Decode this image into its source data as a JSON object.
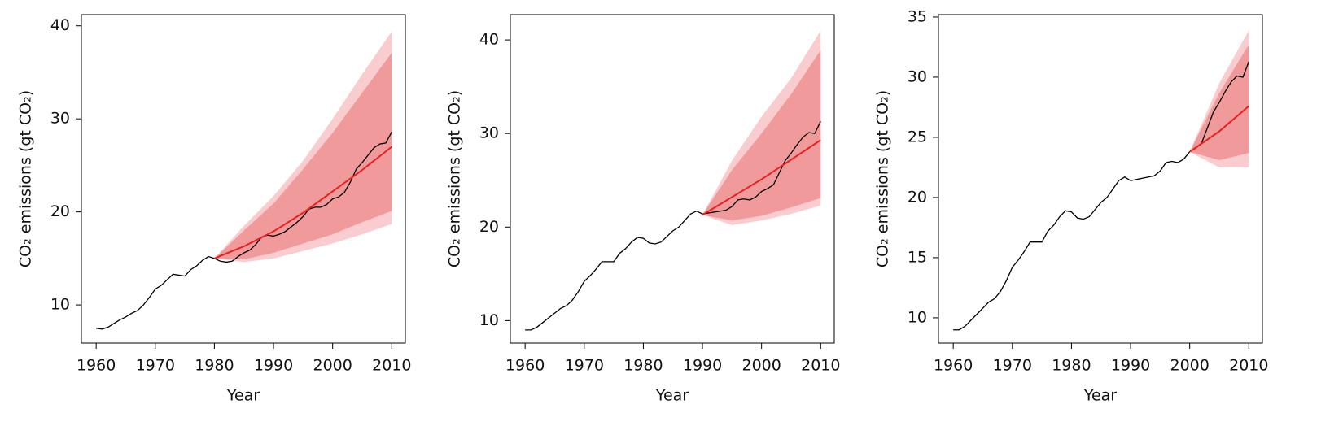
{
  "chart_data": [
    {
      "type": "line",
      "xlabel": "Year",
      "ylabel": "CO₂ emissions (gt CO₂)",
      "xlim": [
        1957.5,
        2012.3
      ],
      "ylim": [
        5.9,
        41.2
      ],
      "xticks": [
        1960,
        1970,
        1980,
        1990,
        2000,
        2010
      ],
      "yticks": [
        10,
        20,
        30,
        40
      ],
      "x": [
        1960,
        1961,
        1962,
        1963,
        1964,
        1965,
        1966,
        1967,
        1968,
        1969,
        1970,
        1971,
        1972,
        1973,
        1974,
        1975,
        1976,
        1977,
        1978,
        1979,
        1980,
        1981,
        1982,
        1983,
        1984,
        1985,
        1986,
        1987,
        1988,
        1989,
        1990,
        1991,
        1992,
        1993,
        1994,
        1995,
        1996,
        1997,
        1998,
        1999,
        2000,
        2001,
        2002,
        2003,
        2004,
        2005,
        2006,
        2007,
        2008,
        2009,
        2010
      ],
      "series": [
        {
          "color": "#000000",
          "values": [
            7.5,
            7.4,
            7.6,
            8.0,
            8.4,
            8.7,
            9.1,
            9.4,
            10.0,
            10.8,
            11.7,
            12.1,
            12.7,
            13.3,
            13.2,
            13.1,
            13.8,
            14.2,
            14.8,
            15.2,
            15.0,
            14.7,
            14.6,
            14.7,
            15.2,
            15.6,
            15.9,
            16.5,
            17.3,
            17.5,
            17.4,
            17.6,
            17.9,
            18.4,
            18.9,
            19.5,
            20.3,
            20.5,
            20.5,
            20.8,
            21.4,
            21.6,
            22.1,
            23.2,
            24.6,
            25.3,
            26.1,
            26.9,
            27.3,
            27.4,
            28.6
          ]
        }
      ],
      "forecast_x": [
        1980,
        1985,
        1990,
        1995,
        2000,
        2005,
        2010
      ],
      "forecast": {
        "color": "#e8211f",
        "values": [
          15.0,
          16.3,
          17.9,
          19.9,
          22.2,
          24.5,
          27.0
        ]
      },
      "bands": [
        {
          "color": "#f9cccf",
          "lower": [
            15.0,
            14.6,
            15.0,
            15.8,
            16.6,
            17.6,
            18.7
          ],
          "upper": [
            15.0,
            18.5,
            21.7,
            25.5,
            30.0,
            34.8,
            39.4
          ]
        },
        {
          "color": "#f19a9b",
          "lower": [
            15.0,
            14.9,
            15.6,
            16.6,
            17.6,
            18.9,
            20.1
          ],
          "upper": [
            15.0,
            18.0,
            20.9,
            24.6,
            28.5,
            32.8,
            37.1
          ]
        }
      ]
    },
    {
      "type": "line",
      "xlabel": "Year",
      "ylabel": "CO₂ emissions (gt CO₂)",
      "xlim": [
        1957.5,
        2012.3
      ],
      "ylim": [
        7.6,
        42.7
      ],
      "xticks": [
        1960,
        1970,
        1980,
        1990,
        2000,
        2010
      ],
      "yticks": [
        10,
        20,
        30,
        40
      ],
      "x": [
        1960,
        1961,
        1962,
        1963,
        1964,
        1965,
        1966,
        1967,
        1968,
        1969,
        1970,
        1971,
        1972,
        1973,
        1974,
        1975,
        1976,
        1977,
        1978,
        1979,
        1980,
        1981,
        1982,
        1983,
        1984,
        1985,
        1986,
        1987,
        1988,
        1989,
        1990,
        1991,
        1992,
        1993,
        1994,
        1995,
        1996,
        1997,
        1998,
        1999,
        2000,
        2001,
        2002,
        2003,
        2004,
        2005,
        2006,
        2007,
        2008,
        2009,
        2010
      ],
      "series": [
        {
          "color": "#000000",
          "values": [
            9.0,
            9.0,
            9.3,
            9.8,
            10.3,
            10.8,
            11.3,
            11.6,
            12.2,
            13.1,
            14.2,
            14.8,
            15.5,
            16.3,
            16.3,
            16.3,
            17.2,
            17.7,
            18.4,
            18.9,
            18.8,
            18.3,
            18.2,
            18.4,
            19.0,
            19.6,
            20.0,
            20.7,
            21.4,
            21.7,
            21.4,
            21.5,
            21.6,
            21.7,
            21.8,
            22.2,
            22.9,
            23.0,
            22.9,
            23.2,
            23.8,
            24.1,
            24.5,
            25.8,
            27.1,
            27.9,
            28.8,
            29.6,
            30.1,
            30.0,
            31.3
          ]
        }
      ],
      "forecast_x": [
        1990,
        1995,
        2000,
        2005,
        2010
      ],
      "forecast": {
        "color": "#e8211f",
        "values": [
          21.3,
          23.2,
          25.1,
          27.2,
          29.3
        ]
      },
      "bands": [
        {
          "color": "#f9cccf",
          "lower": [
            21.3,
            20.2,
            20.7,
            21.4,
            22.3
          ],
          "upper": [
            21.3,
            27.1,
            31.8,
            35.9,
            41.0
          ]
        },
        {
          "color": "#f19a9b",
          "lower": [
            21.3,
            20.7,
            21.2,
            22.1,
            23.1
          ],
          "upper": [
            21.3,
            26.1,
            30.0,
            34.2,
            38.9
          ]
        }
      ]
    },
    {
      "type": "line",
      "xlabel": "Year",
      "ylabel": "CO₂ emissions (gt CO₂)",
      "xlim": [
        1957.5,
        2012.3
      ],
      "ylim": [
        7.9,
        35.2
      ],
      "xticks": [
        1960,
        1970,
        1980,
        1990,
        2000,
        2010
      ],
      "yticks": [
        10,
        15,
        20,
        25,
        30,
        35
      ],
      "x": [
        1960,
        1961,
        1962,
        1963,
        1964,
        1965,
        1966,
        1967,
        1968,
        1969,
        1970,
        1971,
        1972,
        1973,
        1974,
        1975,
        1976,
        1977,
        1978,
        1979,
        1980,
        1981,
        1982,
        1983,
        1984,
        1985,
        1986,
        1987,
        1988,
        1989,
        1990,
        1991,
        1992,
        1993,
        1994,
        1995,
        1996,
        1997,
        1998,
        1999,
        2000,
        2001,
        2002,
        2003,
        2004,
        2005,
        2006,
        2007,
        2008,
        2009,
        2010
      ],
      "series": [
        {
          "color": "#000000",
          "values": [
            9.0,
            9.0,
            9.3,
            9.8,
            10.3,
            10.8,
            11.3,
            11.6,
            12.2,
            13.1,
            14.2,
            14.8,
            15.5,
            16.3,
            16.3,
            16.3,
            17.2,
            17.7,
            18.4,
            18.9,
            18.8,
            18.3,
            18.2,
            18.4,
            19.0,
            19.6,
            20.0,
            20.7,
            21.4,
            21.7,
            21.4,
            21.5,
            21.6,
            21.7,
            21.8,
            22.2,
            22.9,
            23.0,
            22.9,
            23.2,
            23.8,
            24.1,
            24.5,
            25.8,
            27.1,
            27.9,
            28.8,
            29.6,
            30.1,
            30.0,
            31.3
          ]
        }
      ],
      "forecast_x": [
        2000,
        2005,
        2010
      ],
      "forecast": {
        "color": "#e8211f",
        "values": [
          23.8,
          25.5,
          27.6
        ]
      },
      "bands": [
        {
          "color": "#f9cccf",
          "lower": [
            23.8,
            22.5,
            22.5
          ],
          "upper": [
            23.8,
            29.5,
            33.9
          ]
        },
        {
          "color": "#f19a9b",
          "lower": [
            23.8,
            23.1,
            23.7
          ],
          "upper": [
            23.8,
            28.7,
            32.7
          ]
        }
      ]
    }
  ]
}
